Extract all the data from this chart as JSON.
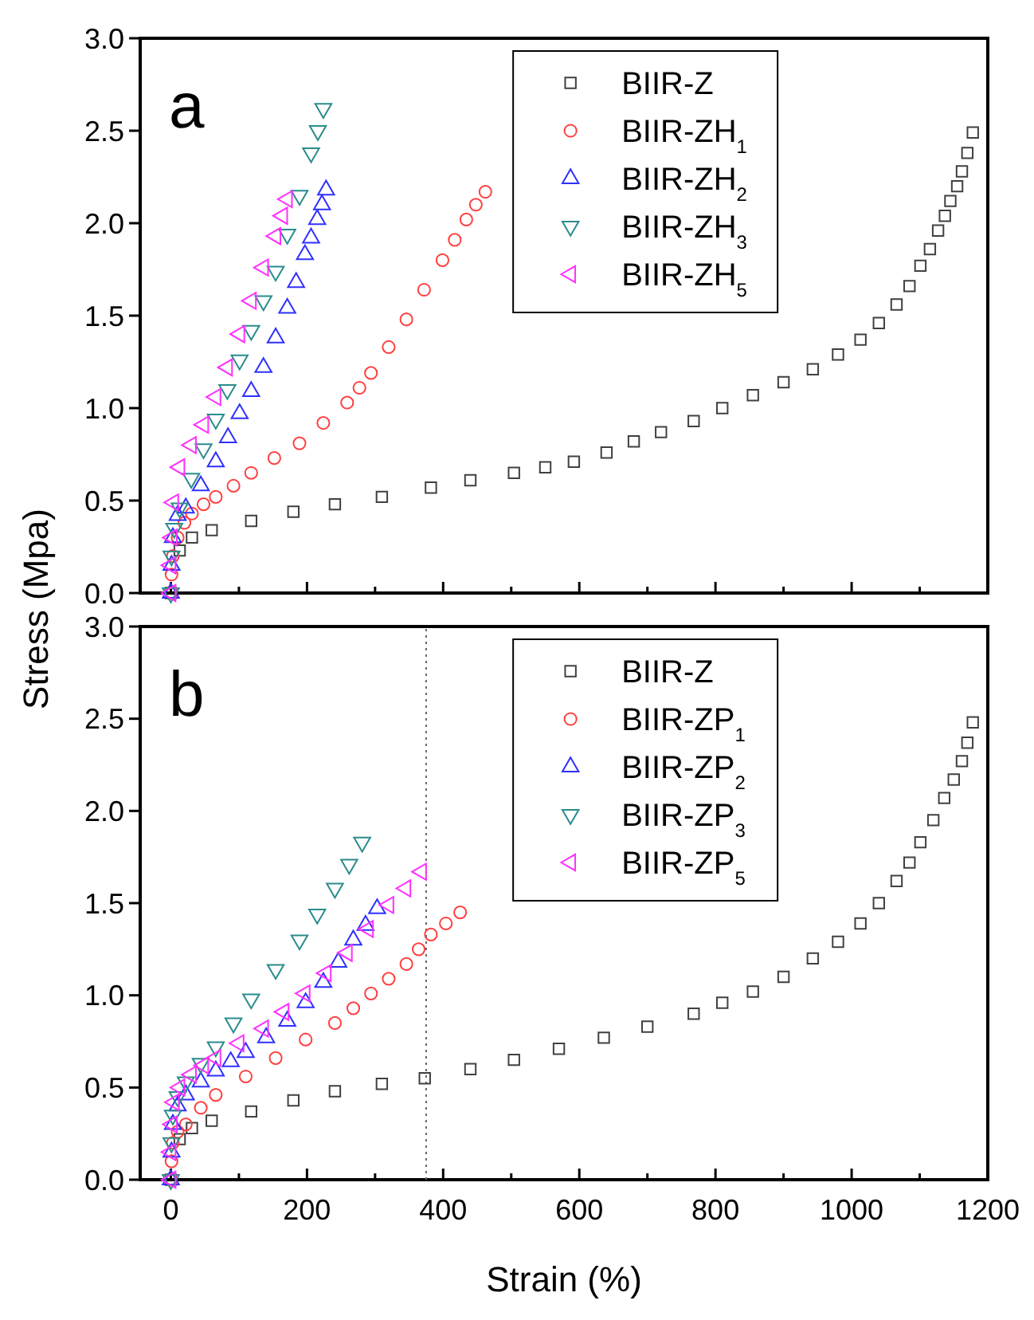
{
  "chart_data": [
    {
      "type": "scatter",
      "ylabel": "Stress (Mpa)",
      "annotations": [
        "a"
      ],
      "legend": "top",
      "tick_labels": "y",
      "xlim": [
        -45,
        1200
      ],
      "ylim": [
        0,
        3.0
      ],
      "xticks": [
        0,
        {
          "value": 100,
          "label": null
        },
        200,
        {
          "value": 300,
          "label": null
        },
        400,
        {
          "value": 500,
          "label": null
        },
        600,
        {
          "value": 700,
          "label": null
        },
        800,
        {
          "value": 900,
          "label": null
        },
        1000,
        {
          "value": 1100,
          "label": null
        },
        1200
      ],
      "yticks": [
        {
          "value": 0,
          "label": "0.0"
        },
        {
          "value": 0.5,
          "label": "0.5"
        },
        {
          "value": 1,
          "label": "1.0"
        },
        {
          "value": 1.5,
          "label": "1.5"
        },
        {
          "value": 2,
          "label": "2.0"
        },
        {
          "value": 2.5,
          "label": "2.5"
        },
        {
          "value": 3,
          "label": "3.0"
        }
      ],
      "series": [
        {
          "name": "BIIR-Z",
          "color": "#404040",
          "marker": "square",
          "x": [
            0,
            13,
            31,
            60,
            118,
            180,
            241,
            310,
            382,
            440,
            504,
            550,
            592,
            640,
            680,
            720,
            768,
            810,
            855,
            900,
            943,
            980,
            1013,
            1040,
            1066,
            1085,
            1101,
            1115,
            1127,
            1137,
            1145,
            1155,
            1162,
            1170,
            1178
          ],
          "values": [
            0,
            0.23,
            0.3,
            0.34,
            0.39,
            0.44,
            0.48,
            0.52,
            0.57,
            0.61,
            0.65,
            0.68,
            0.71,
            0.76,
            0.82,
            0.87,
            0.93,
            1.0,
            1.07,
            1.14,
            1.21,
            1.29,
            1.37,
            1.46,
            1.56,
            1.66,
            1.77,
            1.86,
            1.96,
            2.04,
            2.12,
            2.2,
            2.28,
            2.38,
            2.49
          ]
        },
        {
          "name": "BIIR-ZH$_{1}$",
          "color": "#ff4040",
          "marker": "circle",
          "x": [
            0,
            1,
            3,
            10,
            20,
            31,
            48,
            66,
            92,
            118,
            152,
            189,
            224,
            259,
            277,
            294,
            320,
            346,
            372,
            399,
            417,
            434,
            448,
            462
          ],
          "values": [
            0,
            0.1,
            0.2,
            0.3,
            0.38,
            0.43,
            0.48,
            0.52,
            0.58,
            0.65,
            0.73,
            0.81,
            0.92,
            1.03,
            1.11,
            1.19,
            1.33,
            1.48,
            1.64,
            1.8,
            1.91,
            2.02,
            2.1,
            2.17
          ]
        },
        {
          "name": "BIIR-ZH$_{2}$",
          "color": "#3030ff",
          "marker": "triangle",
          "x": [
            0,
            1,
            3,
            10,
            22,
            44,
            66,
            84,
            101,
            118,
            136,
            154,
            171,
            184,
            197,
            206,
            215,
            222,
            228
          ],
          "values": [
            0,
            0.15,
            0.3,
            0.42,
            0.46,
            0.58,
            0.71,
            0.84,
            0.97,
            1.09,
            1.22,
            1.38,
            1.54,
            1.68,
            1.83,
            1.92,
            2.02,
            2.1,
            2.18
          ]
        },
        {
          "name": "BIIR-ZH$_{3}$",
          "color": "#2a8c8c",
          "marker": "triangle-down",
          "x": [
            0,
            1,
            5,
            13,
            30,
            48,
            66,
            83,
            101,
            118,
            136,
            154,
            171,
            189,
            206,
            216,
            224
          ],
          "values": [
            0,
            0.2,
            0.35,
            0.46,
            0.62,
            0.78,
            0.94,
            1.1,
            1.26,
            1.42,
            1.58,
            1.74,
            1.94,
            2.15,
            2.38,
            2.5,
            2.62
          ]
        },
        {
          "name": "BIIR-ZH$_{5}$",
          "color": "#ff30ff",
          "marker": "triangle-left",
          "x": [
            0,
            0,
            2,
            4,
            13,
            30,
            48,
            66,
            83,
            101,
            118,
            136,
            154,
            164,
            171
          ],
          "values": [
            0,
            0.15,
            0.3,
            0.49,
            0.68,
            0.8,
            0.91,
            1.06,
            1.22,
            1.4,
            1.58,
            1.76,
            1.93,
            2.04,
            2.13
          ]
        }
      ]
    },
    {
      "type": "scatter",
      "xlabel": "Strain (%)",
      "annotations": [
        "b"
      ],
      "legend": "top",
      "xlim": [
        -45,
        1200
      ],
      "ylim": [
        0,
        3.0
      ],
      "xticks": [
        0,
        {
          "value": 100,
          "label": null
        },
        200,
        {
          "value": 300,
          "label": null
        },
        400,
        {
          "value": 500,
          "label": null
        },
        600,
        {
          "value": 700,
          "label": null
        },
        800,
        {
          "value": 900,
          "label": null
        },
        1000,
        {
          "value": 1100,
          "label": null
        },
        1200
      ],
      "yticks": [
        {
          "value": 0,
          "label": "0.0"
        },
        {
          "value": 0.5,
          "label": "0.5"
        },
        {
          "value": 1,
          "label": "1.0"
        },
        {
          "value": 1.5,
          "label": "1.5"
        },
        {
          "value": 2,
          "label": "2.0"
        },
        {
          "value": 2.5,
          "label": "2.5"
        },
        {
          "value": 3,
          "label": "3.0"
        }
      ],
      "ref_lines": [
        {
          "axis": "x",
          "value": 375,
          "label": null,
          "color": "#666666",
          "line_style": "dotted"
        }
      ],
      "series": [
        {
          "name": "BIIR-Z",
          "color": "#404040",
          "marker": "square",
          "x": [
            0,
            13,
            31,
            60,
            118,
            180,
            241,
            310,
            373,
            440,
            504,
            570,
            636,
            700,
            768,
            810,
            855,
            900,
            943,
            980,
            1013,
            1040,
            1066,
            1085,
            1101,
            1120,
            1136,
            1150,
            1162,
            1170,
            1178
          ],
          "values": [
            0,
            0.22,
            0.28,
            0.32,
            0.37,
            0.43,
            0.48,
            0.52,
            0.55,
            0.6,
            0.65,
            0.71,
            0.77,
            0.83,
            0.9,
            0.96,
            1.02,
            1.1,
            1.2,
            1.29,
            1.39,
            1.5,
            1.62,
            1.72,
            1.83,
            1.95,
            2.07,
            2.17,
            2.27,
            2.37,
            2.48
          ]
        },
        {
          "name": "BIIR-ZP$_{1}$",
          "color": "#ff4040",
          "marker": "circle",
          "x": [
            0,
            1,
            3,
            10,
            22,
            44,
            66,
            110,
            154,
            198,
            241,
            268,
            294,
            320,
            346,
            364,
            382,
            404,
            425
          ],
          "values": [
            0,
            0.1,
            0.2,
            0.26,
            0.3,
            0.39,
            0.46,
            0.56,
            0.66,
            0.76,
            0.85,
            0.93,
            1.01,
            1.09,
            1.17,
            1.25,
            1.33,
            1.39,
            1.45
          ]
        },
        {
          "name": "BIIR-ZP$_{2}$",
          "color": "#3030ff",
          "marker": "triangle",
          "x": [
            0,
            1,
            3,
            10,
            22,
            44,
            66,
            88,
            110,
            140,
            171,
            198,
            224,
            246,
            268,
            286,
            303
          ],
          "values": [
            0,
            0.15,
            0.3,
            0.4,
            0.46,
            0.53,
            0.59,
            0.64,
            0.69,
            0.77,
            0.86,
            0.96,
            1.07,
            1.18,
            1.3,
            1.38,
            1.47
          ]
        },
        {
          "name": "BIIR-ZP$_{3}$",
          "color": "#2a8c8c",
          "marker": "triangle-down",
          "x": [
            0,
            1,
            3,
            10,
            22,
            44,
            66,
            92,
            118,
            154,
            189,
            215,
            241,
            262,
            281
          ],
          "values": [
            0,
            0.2,
            0.35,
            0.45,
            0.53,
            0.63,
            0.72,
            0.85,
            0.98,
            1.14,
            1.3,
            1.44,
            1.58,
            1.71,
            1.83
          ]
        },
        {
          "name": "BIIR-ZP$_{5}$",
          "color": "#ff30ff",
          "marker": "triangle-left",
          "x": [
            0,
            0,
            2,
            5,
            13,
            30,
            48,
            66,
            100,
            136,
            166,
            197,
            228,
            259,
            290,
            320,
            345,
            368
          ],
          "values": [
            0,
            0.15,
            0.3,
            0.42,
            0.5,
            0.57,
            0.62,
            0.66,
            0.74,
            0.82,
            0.91,
            1.01,
            1.12,
            1.23,
            1.36,
            1.49,
            1.58,
            1.67
          ]
        }
      ]
    }
  ]
}
